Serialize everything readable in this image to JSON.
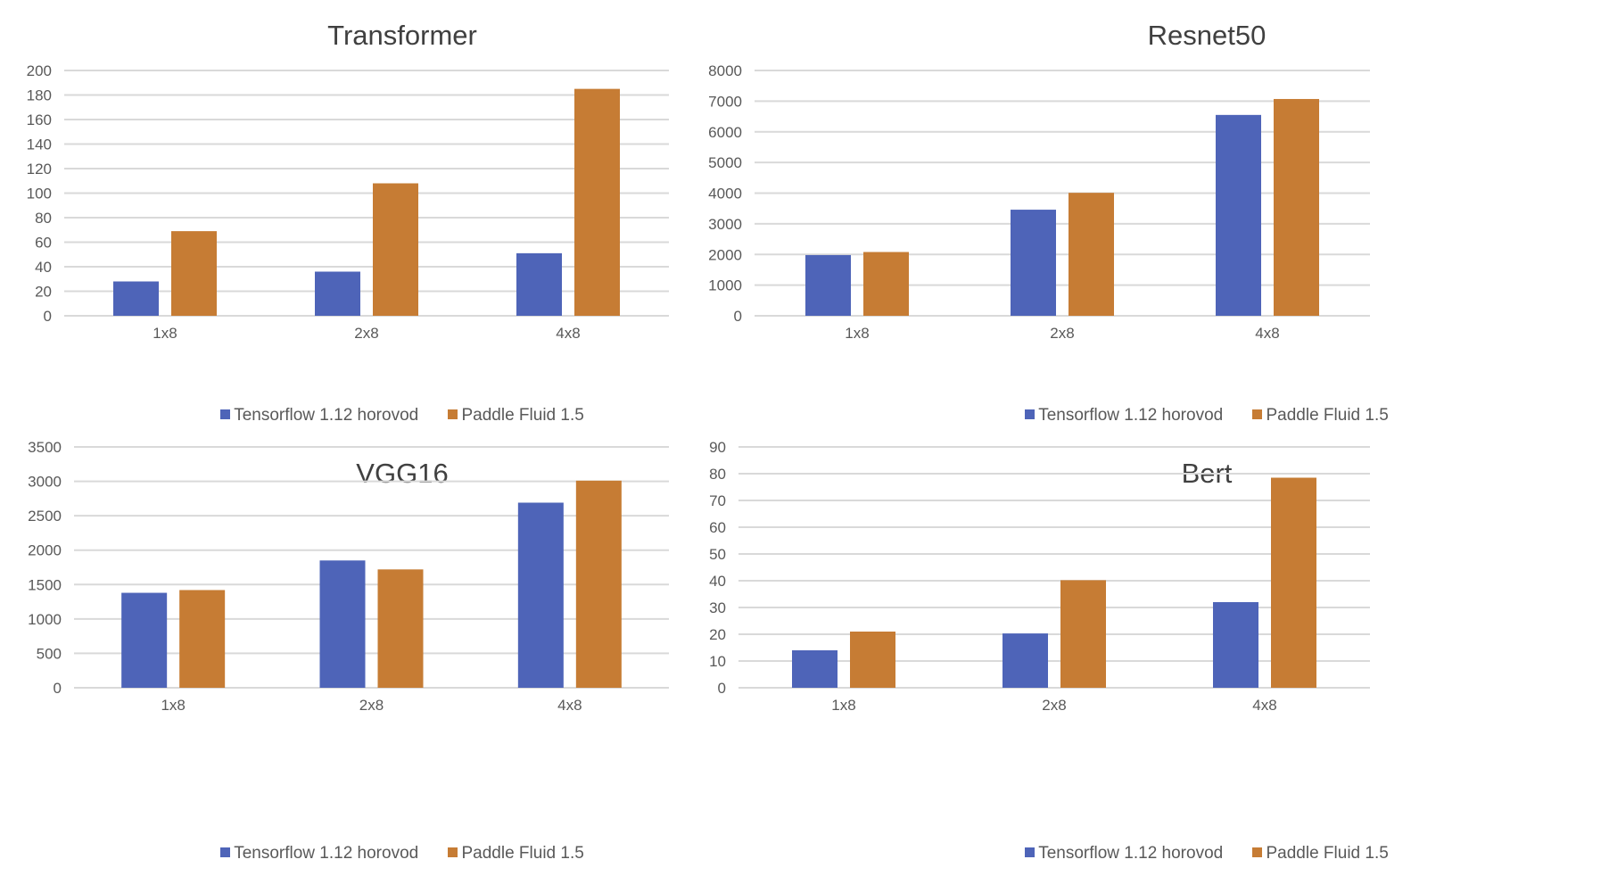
{
  "colors": {
    "series1": "#4e64b8",
    "series2": "#c67c34",
    "grid": "#d9d9d9",
    "text": "#595959",
    "title": "#404040"
  },
  "chart_data": [
    {
      "type": "bar",
      "title": "Transformer",
      "categories": [
        "1x8",
        "2x8",
        "4x8"
      ],
      "ylim": [
        0,
        200
      ],
      "yticks": [
        0,
        20,
        40,
        60,
        80,
        100,
        120,
        140,
        160,
        180,
        200
      ],
      "series": [
        {
          "name": "Tensorflow 1.12 horovod",
          "values": [
            28,
            36,
            51
          ]
        },
        {
          "name": "Paddle Fluid 1.5",
          "values": [
            69,
            108,
            185
          ]
        }
      ],
      "legend": "bottom",
      "grid": true
    },
    {
      "type": "bar",
      "title": "Resnet50",
      "categories": [
        "1x8",
        "2x8",
        "4x8"
      ],
      "ylim": [
        0,
        8000
      ],
      "yticks": [
        0,
        1000,
        2000,
        3000,
        4000,
        5000,
        6000,
        7000,
        8000
      ],
      "series": [
        {
          "name": "Tensorflow 1.12 horovod",
          "values": [
            1980,
            3460,
            6550
          ]
        },
        {
          "name": "Paddle Fluid 1.5",
          "values": [
            2080,
            4010,
            7070
          ]
        }
      ],
      "legend": "bottom",
      "grid": true
    },
    {
      "type": "bar",
      "title": "VGG16",
      "categories": [
        "1x8",
        "2x8",
        "4x8"
      ],
      "ylim": [
        0,
        3500
      ],
      "yticks": [
        0,
        500,
        1000,
        1500,
        2000,
        2500,
        3000,
        3500
      ],
      "series": [
        {
          "name": "Tensorflow 1.12 horovod",
          "values": [
            1380,
            1850,
            2690
          ]
        },
        {
          "name": "Paddle Fluid 1.5",
          "values": [
            1420,
            1720,
            3010
          ]
        }
      ],
      "legend": "bottom",
      "grid": true
    },
    {
      "type": "bar",
      "title": "Bert",
      "categories": [
        "1x8",
        "2x8",
        "4x8"
      ],
      "ylim": [
        0,
        90
      ],
      "yticks": [
        0,
        10,
        20,
        30,
        40,
        50,
        60,
        70,
        80,
        90
      ],
      "series": [
        {
          "name": "Tensorflow 1.12 horovod",
          "values": [
            14,
            20.3,
            32
          ]
        },
        {
          "name": "Paddle Fluid 1.5",
          "values": [
            21,
            40.2,
            78.5
          ]
        }
      ],
      "legend": "bottom",
      "grid": true
    }
  ]
}
